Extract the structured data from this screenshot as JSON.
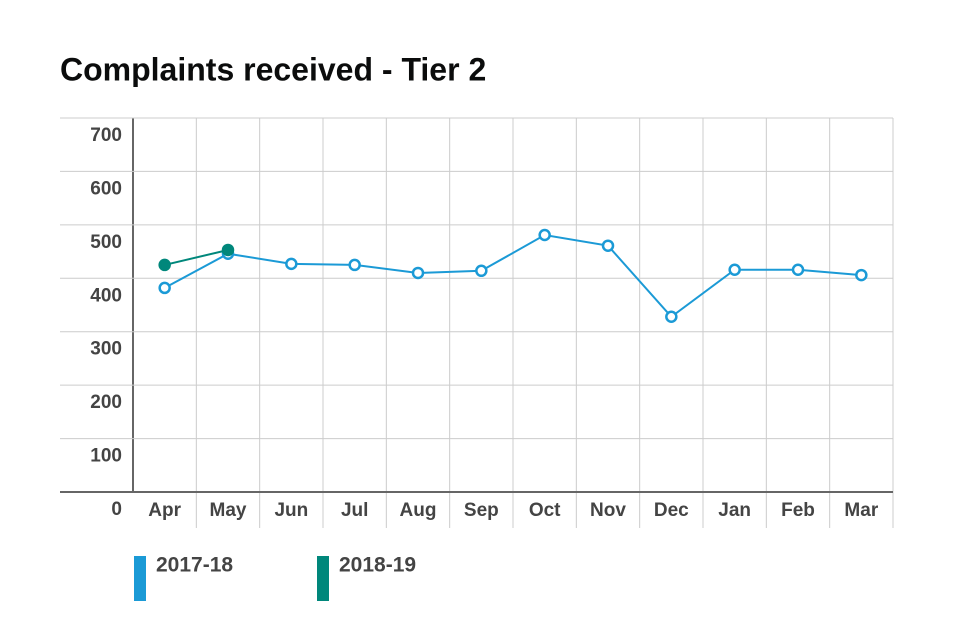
{
  "chart_data": {
    "type": "line",
    "title": "Complaints received - Tier 2",
    "categories": [
      "Apr",
      "May",
      "Jun",
      "Jul",
      "Aug",
      "Sep",
      "Oct",
      "Nov",
      "Dec",
      "Jan",
      "Feb",
      "Mar"
    ],
    "series": [
      {
        "name": "2017-18",
        "color": "#1b9ad6",
        "marker": "open",
        "values": [
          382,
          446,
          427,
          425,
          410,
          414,
          481,
          461,
          328,
          416,
          416,
          406
        ]
      },
      {
        "name": "2018-19",
        "color": "#00877b",
        "marker": "filled",
        "values": [
          425,
          453,
          null,
          null,
          null,
          null,
          null,
          null,
          null,
          null,
          null,
          null
        ]
      }
    ],
    "ylim": [
      0,
      700
    ],
    "yticks": [
      0,
      100,
      200,
      300,
      400,
      500,
      600,
      700
    ],
    "grid": true
  }
}
